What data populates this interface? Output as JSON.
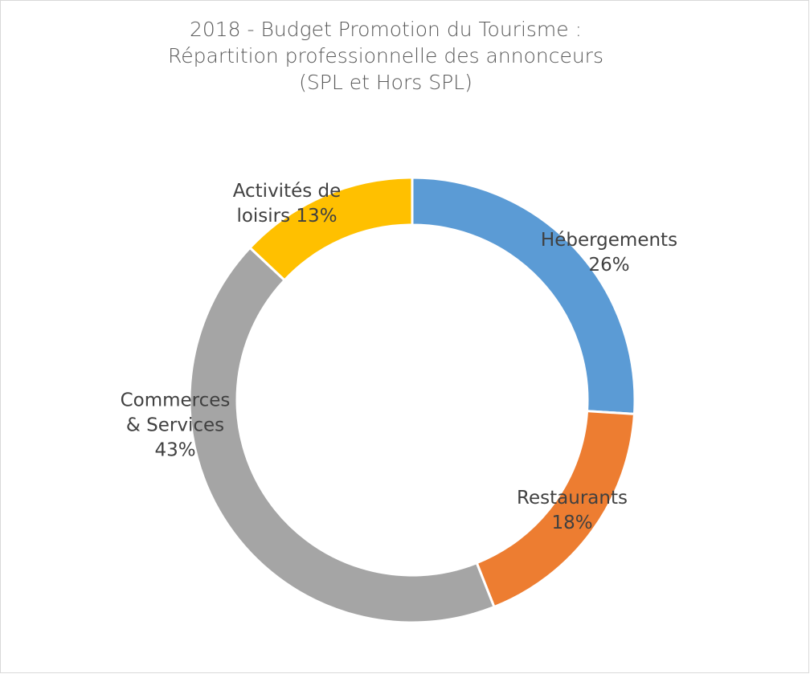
{
  "chart_data": {
    "type": "donut",
    "title": [
      "2018 - Budget Promotion du Tourisme :",
      "Répartition professionnelle des annonceurs",
      "(SPL et Hors SPL)"
    ],
    "categories": [
      "Hébergements",
      "Restaurants",
      "Commerces & Services",
      "Activités de loisirs"
    ],
    "values": [
      26,
      18,
      43,
      13
    ],
    "value_labels": [
      "26%",
      "18%",
      "43%",
      "13%"
    ],
    "colors": [
      "#5b9bd5",
      "#ed7d31",
      "#a5a5a5",
      "#ffc000"
    ]
  }
}
